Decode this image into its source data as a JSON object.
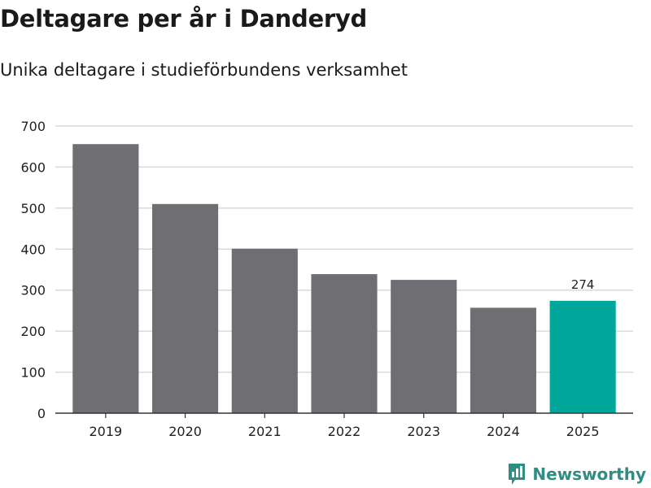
{
  "header": {
    "title": "Deltagare per år i Danderyd",
    "subtitle": "Unika deltagare i studieförbundens verksamhet"
  },
  "brand": {
    "name": "Newsworthy",
    "color": "#2f8d84"
  },
  "colors": {
    "bar": "#6e6e73",
    "highlight": "#00a699",
    "grid": "#d9d9d9",
    "axis": "#333333"
  },
  "chart_data": {
    "type": "bar",
    "title": "Deltagare per år i Danderyd",
    "subtitle": "Unika deltagare i studieförbundens verksamhet",
    "xlabel": "",
    "ylabel": "",
    "categories": [
      "2019",
      "2020",
      "2021",
      "2022",
      "2023",
      "2024",
      "2025"
    ],
    "values": [
      656,
      510,
      401,
      339,
      325,
      257,
      274
    ],
    "highlight_index": 6,
    "data_labels": [
      {
        "index": 6,
        "text": "274"
      }
    ],
    "yticks": [
      0,
      100,
      200,
      300,
      400,
      500,
      600,
      700
    ],
    "ylim": [
      0,
      700
    ],
    "grid": true
  }
}
